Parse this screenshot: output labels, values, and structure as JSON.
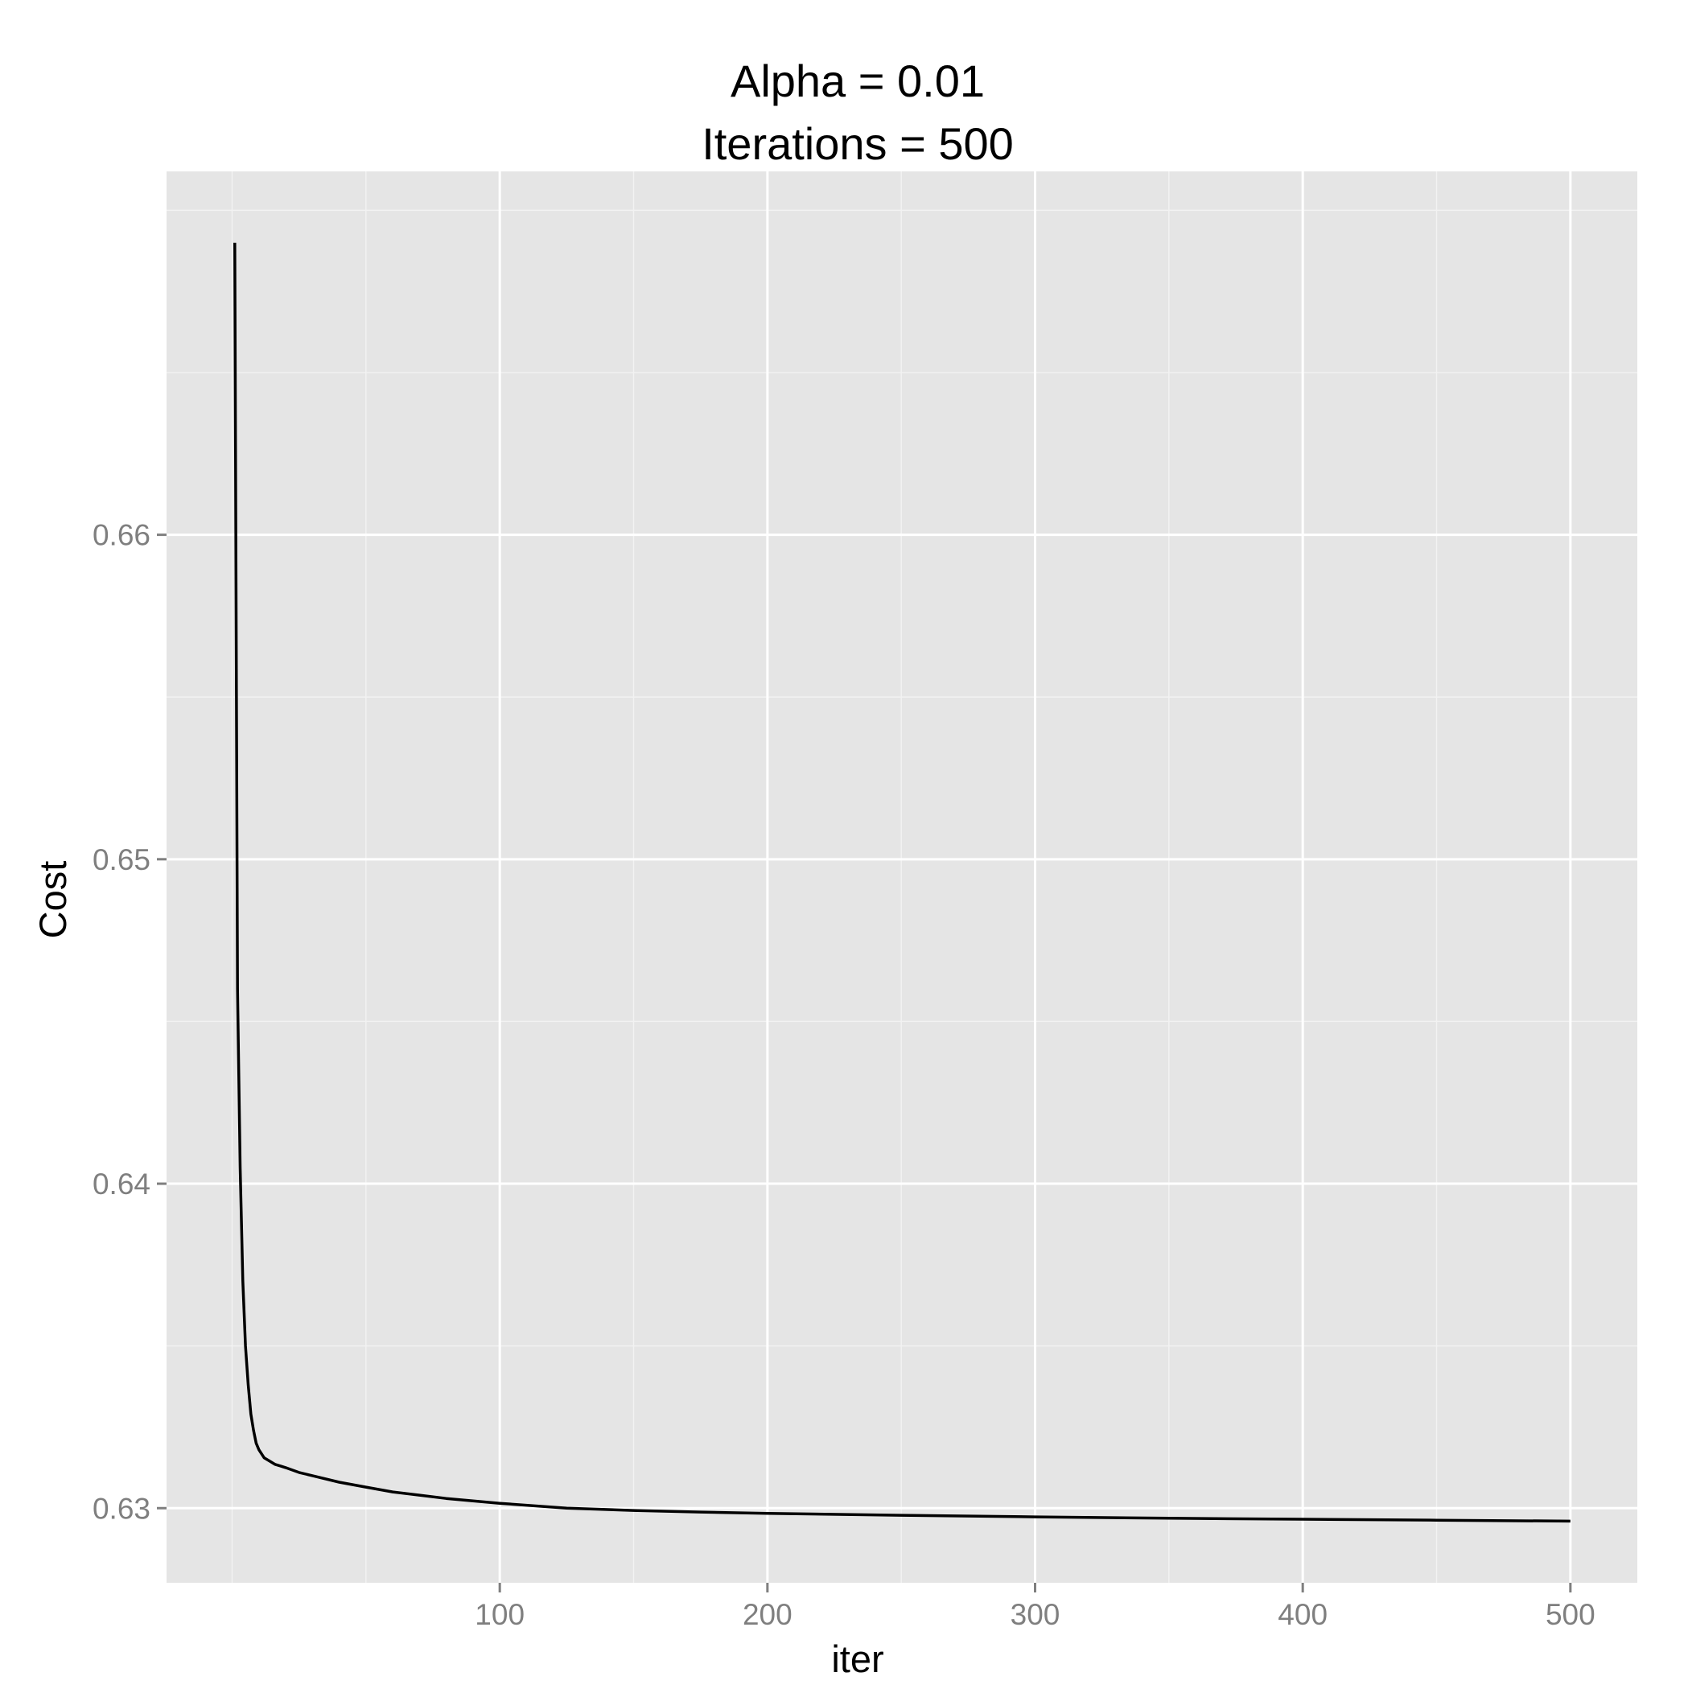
{
  "chart_data": {
    "type": "line",
    "title": [
      "Alpha = 0.01",
      "Iterations = 500"
    ],
    "xlabel": "iter",
    "ylabel": "Cost",
    "xlim": [
      -24.5,
      525
    ],
    "ylim": [
      0.6277,
      0.6712
    ],
    "x_ticks": [
      100,
      200,
      300,
      400,
      500
    ],
    "x_tick_labels": [
      "100",
      "200",
      "300",
      "400",
      "500"
    ],
    "x_minor_ticks": [
      0,
      50,
      150,
      250,
      350,
      450
    ],
    "y_ticks": [
      0.63,
      0.64,
      0.65,
      0.66
    ],
    "y_tick_labels": [
      "0.63",
      "0.64",
      "0.65",
      "0.66"
    ],
    "y_minor_ticks": [
      0.635,
      0.645,
      0.655,
      0.665,
      0.67
    ],
    "grid": true,
    "colors": {
      "panel": "#e5e5e5",
      "grid_major": "#ffffff",
      "grid_minor": "#f2f2f2",
      "line": "#000000",
      "tick": "#7f7f7f"
    },
    "series": [
      {
        "x": [
          1,
          2,
          3,
          4,
          5,
          6,
          7,
          8,
          9,
          10,
          12,
          14,
          16,
          18,
          20,
          25,
          30,
          40,
          50,
          60,
          70,
          80,
          100,
          125,
          150,
          175,
          200,
          250,
          300,
          350,
          400,
          450,
          500
        ],
        "values": [
          0.669,
          0.646,
          0.6405,
          0.637,
          0.635,
          0.6338,
          0.6329,
          0.6324,
          0.632,
          0.6318,
          0.63155,
          0.63145,
          0.63135,
          0.6313,
          0.63125,
          0.6311,
          0.631,
          0.6308,
          0.63065,
          0.6305,
          0.6304,
          0.6303,
          0.63015,
          0.63,
          0.62993,
          0.62988,
          0.62984,
          0.62978,
          0.62973,
          0.62969,
          0.62966,
          0.62963,
          0.6296
        ]
      }
    ]
  }
}
